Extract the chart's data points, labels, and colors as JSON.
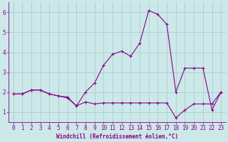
{
  "title": "",
  "xlabel": "Windchill (Refroidissement éolien,°C)",
  "ylabel": "",
  "bg_color": "#cce8e8",
  "grid_color": "#aad0d0",
  "line_color": "#880088",
  "xlim": [
    -0.5,
    23.5
  ],
  "ylim": [
    0.5,
    6.5
  ],
  "yticks": [
    1,
    2,
    3,
    4,
    5,
    6
  ],
  "xticks": [
    0,
    1,
    2,
    3,
    4,
    5,
    6,
    7,
    8,
    9,
    10,
    11,
    12,
    13,
    14,
    15,
    16,
    17,
    18,
    19,
    20,
    21,
    22,
    23
  ],
  "series1_x": [
    0,
    1,
    2,
    3,
    4,
    5,
    6,
    7,
    8,
    9,
    10,
    11,
    12,
    13,
    14,
    15,
    16,
    17,
    18,
    19,
    20,
    21,
    22,
    23
  ],
  "series1_y": [
    1.9,
    1.9,
    2.1,
    2.1,
    1.9,
    1.8,
    1.75,
    1.3,
    1.5,
    1.4,
    1.45,
    1.45,
    1.45,
    1.45,
    1.45,
    1.45,
    1.45,
    1.45,
    0.7,
    1.1,
    1.4,
    1.4,
    1.4,
    2.0
  ],
  "series2_x": [
    0,
    1,
    2,
    3,
    4,
    5,
    6,
    7,
    8,
    9,
    10,
    11,
    12,
    13,
    14,
    15,
    16,
    17,
    18,
    19,
    20,
    21,
    22,
    23
  ],
  "series2_y": [
    1.9,
    1.9,
    2.1,
    2.1,
    1.9,
    1.8,
    1.7,
    1.3,
    2.0,
    2.45,
    3.35,
    3.9,
    4.05,
    3.8,
    4.45,
    6.1,
    5.9,
    5.4,
    2.0,
    3.2,
    3.2,
    3.2,
    1.1,
    2.0
  ],
  "xlabel_fontsize": 5.5,
  "tick_fontsize": 5.5
}
